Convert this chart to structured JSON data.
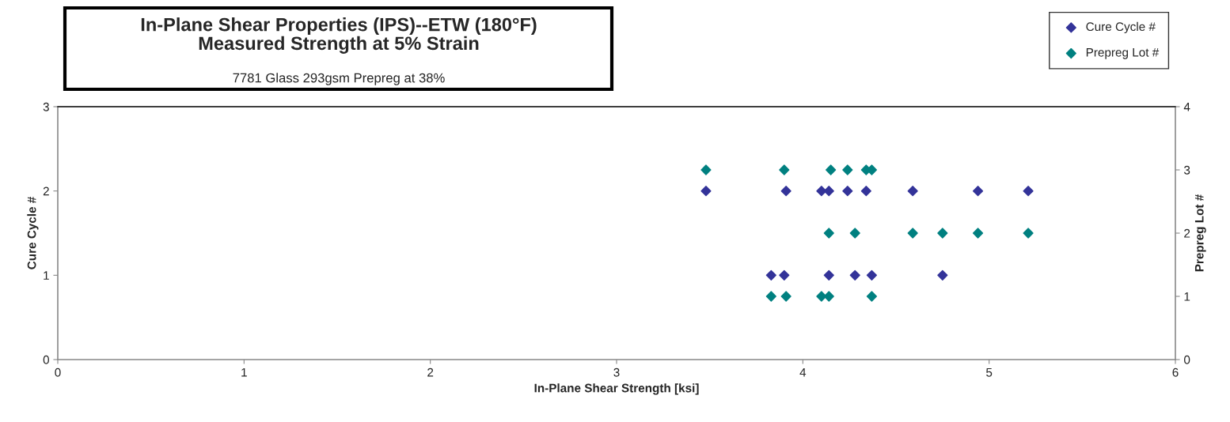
{
  "chart_data": {
    "type": "scatter",
    "title": "In-Plane Shear Properties (IPS)--ETW (180°F)\nMeasured Strength at 5% Strain",
    "subtitle": "7781 Glass 293gsm Prepreg at 38%",
    "xlabel": "In-Plane Shear Strength [ksi]",
    "ylabel": "Cure Cycle #",
    "y2label": "Prepreg Lot #",
    "series": [
      {
        "name": "Cure Cycle #",
        "color": "#333399",
        "x": [
          3.48,
          3.91,
          4.1,
          4.14,
          4.24,
          4.34,
          4.59,
          4.94,
          5.21,
          3.83,
          3.9,
          4.14,
          4.28,
          4.37,
          4.75
        ],
        "values": [
          2,
          2,
          2,
          2,
          2,
          2,
          2,
          2,
          2,
          1,
          1,
          1,
          1,
          1,
          1
        ]
      },
      {
        "name": "Prepreg Lot #",
        "color": "#008080",
        "axis": "y2",
        "x": [
          3.48,
          3.9,
          4.15,
          4.24,
          4.34,
          4.37,
          4.14,
          4.28,
          4.59,
          4.75,
          4.94,
          5.21,
          3.83,
          3.91,
          4.1,
          4.14,
          4.37
        ],
        "values": [
          3,
          3,
          3,
          3,
          3,
          3,
          2,
          2,
          2,
          2,
          2,
          2,
          1,
          1,
          1,
          1,
          1
        ]
      }
    ],
    "xlim": [
      0,
      6
    ],
    "xticks": [
      0,
      1,
      2,
      3,
      4,
      5,
      6
    ],
    "ylim": [
      0,
      3
    ],
    "yticks": [
      0,
      1,
      2,
      3
    ],
    "y2lim": [
      0,
      4
    ],
    "y2ticks": [
      0,
      1,
      2,
      3,
      4
    ],
    "marker": "diamond",
    "legend": "top right",
    "grid": false
  }
}
